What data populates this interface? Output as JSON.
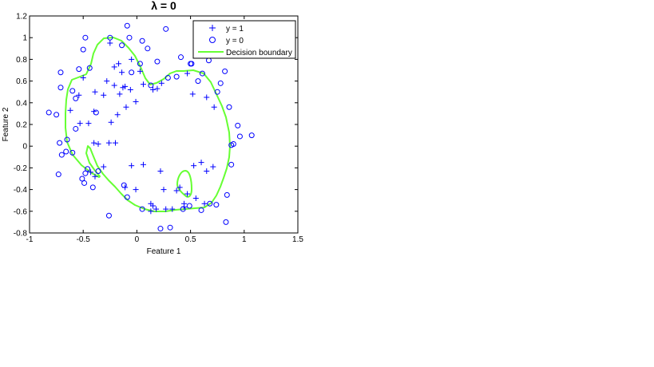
{
  "chart_data": {
    "type": "scatter",
    "title": "λ = 0",
    "xlabel": "Feature 1",
    "ylabel": "Feature 2",
    "xlim": [
      -1,
      1.5
    ],
    "ylim": [
      -0.8,
      1.2
    ],
    "xticks": [
      "-1",
      "-0.5",
      "0",
      "0.5",
      "1",
      "1.5"
    ],
    "yticks": [
      "-0.8",
      "-0.6",
      "-0.4",
      "-0.2",
      "0",
      "0.2",
      "0.4",
      "0.6",
      "0.8",
      "1",
      "1.2"
    ],
    "grid": false,
    "legend_position": "top-right",
    "series": [
      {
        "name": "y = 1",
        "marker": "plus",
        "color": "#0000ff",
        "x": [
          -0.25,
          -0.21,
          -0.17,
          -0.14,
          -0.05,
          0.03,
          -0.28,
          -0.21,
          -0.13,
          -0.11,
          0.06,
          0.15,
          0.19,
          0.23,
          -0.5,
          -0.54,
          -0.39,
          -0.31,
          -0.62,
          -0.4,
          -0.45,
          -0.53,
          -0.24,
          -0.1,
          -0.01,
          -0.06,
          -0.4,
          -0.36,
          -0.26,
          -0.2,
          -0.31,
          -0.43,
          -0.39,
          -0.05,
          0.06,
          -0.11,
          -0.01,
          0.13,
          0.27,
          0.22,
          0.44,
          0.47,
          0.55,
          0.63,
          0.71,
          0.65,
          0.6,
          0.53,
          0.33,
          0.44,
          0.13,
          0.18,
          0.25,
          0.37,
          0.4,
          0.47,
          0.52,
          0.65,
          0.72,
          -0.16,
          -0.18,
          0.15
        ],
        "y": [
          0.95,
          0.73,
          0.76,
          0.68,
          0.8,
          0.69,
          0.6,
          0.56,
          0.54,
          0.55,
          0.57,
          0.52,
          0.53,
          0.58,
          0.63,
          0.47,
          0.5,
          0.47,
          0.33,
          0.32,
          0.21,
          0.21,
          0.22,
          0.36,
          0.41,
          0.52,
          0.03,
          0.02,
          0.03,
          0.03,
          -0.19,
          -0.24,
          -0.28,
          -0.18,
          -0.17,
          -0.38,
          -0.4,
          -0.53,
          -0.58,
          -0.23,
          -0.53,
          -0.44,
          -0.48,
          -0.53,
          -0.19,
          -0.23,
          -0.15,
          -0.18,
          -0.58,
          -0.56,
          -0.6,
          -0.58,
          -0.4,
          -0.41,
          -0.38,
          0.67,
          0.48,
          0.45,
          0.36,
          0.48,
          0.29,
          -0.55
        ]
      },
      {
        "name": "y = 0",
        "marker": "circle",
        "color": "#0000ff",
        "x": [
          -0.48,
          -0.5,
          -0.54,
          -0.6,
          -0.71,
          -0.71,
          -0.82,
          -0.75,
          -0.72,
          -0.65,
          -0.57,
          -0.57,
          -0.66,
          -0.6,
          -0.7,
          -0.73,
          -0.36,
          -0.41,
          -0.49,
          -0.51,
          -0.44,
          -0.25,
          -0.09,
          -0.14,
          -0.07,
          0.05,
          0.03,
          -0.05,
          0.1,
          0.27,
          0.19,
          0.13,
          0.29,
          0.37,
          0.41,
          0.5,
          0.51,
          0.57,
          0.61,
          0.67,
          0.75,
          0.82,
          0.78,
          0.86,
          0.88,
          0.96,
          1.07,
          0.9,
          0.94,
          0.88,
          0.84,
          0.74,
          0.83,
          0.6,
          0.68,
          0.49,
          0.43,
          0.31,
          0.22,
          0.05,
          -0.09,
          -0.12,
          -0.26,
          -0.46,
          -0.38,
          -0.48
        ],
        "y": [
          1.0,
          0.89,
          0.71,
          0.51,
          0.54,
          0.68,
          0.31,
          0.29,
          0.03,
          0.06,
          0.44,
          0.16,
          -0.05,
          -0.06,
          -0.08,
          -0.26,
          -0.23,
          -0.38,
          -0.34,
          -0.3,
          0.72,
          1.0,
          1.11,
          0.93,
          1.0,
          0.97,
          0.76,
          0.68,
          0.9,
          1.08,
          0.78,
          0.56,
          0.63,
          0.64,
          0.82,
          0.76,
          0.76,
          0.6,
          0.67,
          0.79,
          0.5,
          0.69,
          0.58,
          0.36,
          0.01,
          0.09,
          0.1,
          0.02,
          0.19,
          -0.17,
          -0.45,
          -0.54,
          -0.7,
          -0.59,
          -0.53,
          -0.55,
          -0.58,
          -0.75,
          -0.76,
          -0.58,
          -0.47,
          -0.36,
          -0.64,
          -0.21,
          0.31,
          -0.25
        ]
      },
      {
        "name": "Decision boundary",
        "marker": "line",
        "color": "#66ff33",
        "x": [],
        "y": []
      }
    ]
  }
}
